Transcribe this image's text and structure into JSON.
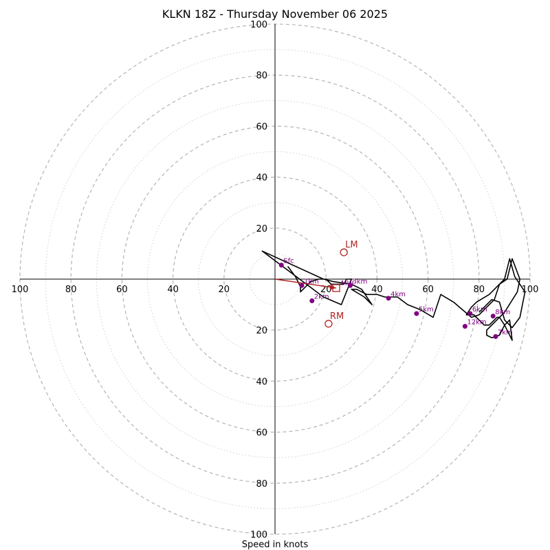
{
  "chart_data": {
    "type": "hodograph",
    "title": "KLKN 18Z - Thursday November 06 2025",
    "xlabel": "Speed in knots",
    "units": "knots",
    "axis_range": [
      -100,
      100
    ],
    "ring_labels": [
      "20",
      "40",
      "60",
      "80",
      "100"
    ],
    "tick_labels": {
      "x_left": [
        "100",
        "80",
        "60",
        "40",
        "20"
      ],
      "x_right": [
        "20",
        "40",
        "60",
        "80",
        "100"
      ],
      "y_top": [
        "20",
        "40",
        "60",
        "80",
        "100"
      ],
      "y_bottom": [
        "20",
        "40",
        "60",
        "80",
        "100"
      ]
    },
    "trace": {
      "name": "wind profile",
      "color": "#000000",
      "u": [
        5,
        8,
        10,
        10,
        14,
        17,
        20,
        22,
        25,
        27,
        28,
        30,
        30,
        26,
        19,
        -5,
        19,
        23,
        30,
        34,
        38,
        35,
        30,
        32,
        36,
        40,
        43,
        46,
        48,
        52,
        57,
        62,
        65,
        70,
        77,
        80,
        86,
        88,
        91,
        93,
        96,
        95,
        90,
        88,
        86,
        83,
        83,
        85,
        88,
        89,
        90,
        92,
        93,
        90,
        88,
        87,
        86,
        84,
        82,
        80,
        78,
        75,
        77,
        79,
        84,
        87,
        90,
        92,
        94,
        98,
        96,
        93,
        90,
        88,
        85,
        80
      ],
      "v": [
        5,
        1,
        -3,
        -5,
        -1,
        0,
        0,
        -2,
        -2,
        -2,
        0,
        0,
        0,
        -10,
        -7,
        11,
        0,
        -1,
        -2,
        -4,
        -10,
        -7,
        -4,
        -4,
        -6,
        -6,
        -7,
        -7,
        -7,
        -10,
        -12,
        -15,
        -6,
        -9,
        -15,
        -14,
        -8,
        -2,
        0,
        8,
        0,
        -5,
        -13,
        -15,
        -17,
        -20,
        -22,
        -23,
        -22,
        -20,
        -18,
        -16,
        -24,
        -18,
        -15,
        -15,
        -16,
        -18,
        -18,
        -16,
        -14,
        -14,
        -11,
        -9,
        -6,
        -3,
        0,
        8,
        1,
        -5,
        -15,
        -19,
        -16,
        -9,
        -8,
        -13
      ]
    },
    "height_markers": [
      {
        "label": "Sfc",
        "u": 2.5,
        "v": 5.5
      },
      {
        "label": "1km",
        "u": 10.5,
        "v": -2.5
      },
      {
        "label": "2km",
        "u": 14.5,
        "v": -8.5
      },
      {
        "label": "3km",
        "u": 29.5,
        "v": -2.5
      },
      {
        "label": "4km",
        "u": 44.5,
        "v": -7.5
      },
      {
        "label": "5km",
        "u": 55.5,
        "v": -13.5
      },
      {
        "label": "6km",
        "u": 76.5,
        "v": -13.5
      },
      {
        "label": "7km",
        "u": 86.5,
        "v": -22.5
      },
      {
        "label": "8km",
        "u": 85.5,
        "v": -14.5
      },
      {
        "label": "12km",
        "u": 74.5,
        "v": -18.5
      }
    ],
    "markers_color": "#800080",
    "storm_motion": {
      "color": "#b22222",
      "bunkers_right": {
        "label": "RM",
        "u": 21,
        "v": -17.5
      },
      "bunkers_left": {
        "label": "LM",
        "u": 27,
        "v": 10.5
      },
      "mean_wind": {
        "label": "MW",
        "u": 24,
        "v": -3.5
      },
      "vector_from": {
        "u": 0,
        "v": 0
      },
      "vector_to": {
        "u": 24,
        "v": -3.5
      }
    }
  }
}
